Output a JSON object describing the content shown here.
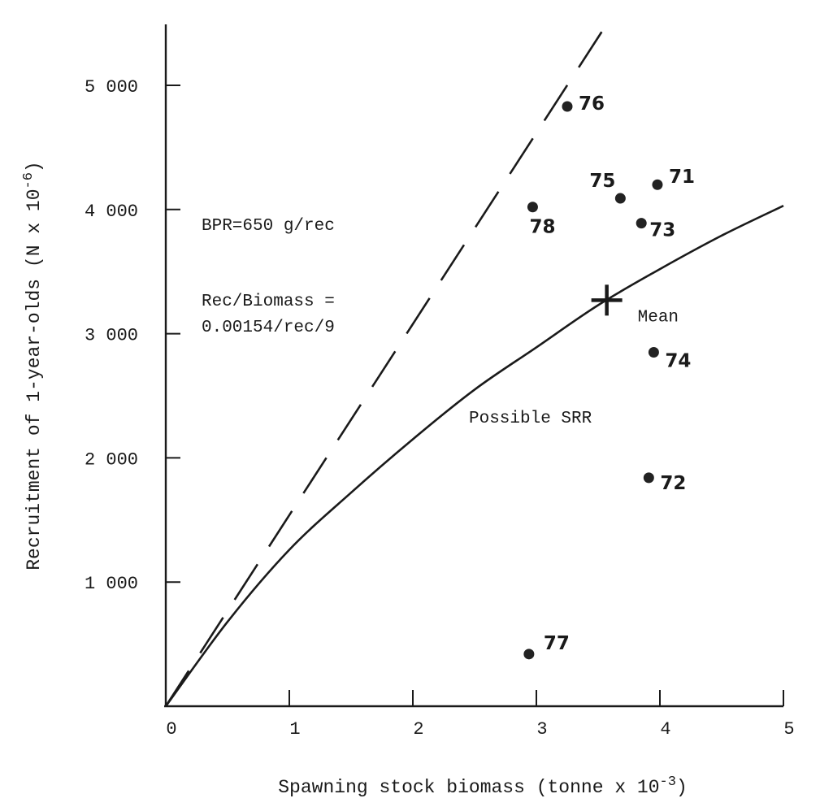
{
  "chart_data": {
    "type": "scatter",
    "xlabel": "Spawning stock biomass (tonne x 10",
    "xlabel_exponent": "-3",
    "xlabel_close": ")",
    "ylabel": "Recruitment of 1-year-olds (N x 10",
    "ylabel_exponent": "-6",
    "ylabel_close": ")",
    "xlim": [
      0,
      5
    ],
    "ylim": [
      0,
      5500
    ],
    "x_ticks": [
      {
        "value": 0,
        "label": "0"
      },
      {
        "value": 1,
        "label": "1"
      },
      {
        "value": 2,
        "label": "2"
      },
      {
        "value": 3,
        "label": "3"
      },
      {
        "value": 4,
        "label": "4"
      },
      {
        "value": 5,
        "label": "5"
      }
    ],
    "y_ticks": [
      {
        "value": 1000,
        "label": "1 000"
      },
      {
        "value": 2000,
        "label": "2 000"
      },
      {
        "value": 3000,
        "label": "3 000"
      },
      {
        "value": 4000,
        "label": "4 000"
      },
      {
        "value": 5000,
        "label": "5 000"
      }
    ],
    "grid": false,
    "points": [
      {
        "label": "71",
        "x": 3.98,
        "y": 4200
      },
      {
        "label": "72",
        "x": 3.91,
        "y": 1840
      },
      {
        "label": "73",
        "x": 3.85,
        "y": 3890
      },
      {
        "label": "74",
        "x": 3.95,
        "y": 2850
      },
      {
        "label": "75",
        "x": 3.68,
        "y": 4090
      },
      {
        "label": "76",
        "x": 3.25,
        "y": 4830
      },
      {
        "label": "77",
        "x": 2.94,
        "y": 420
      },
      {
        "label": "78",
        "x": 2.97,
        "y": 4020
      }
    ],
    "mean": {
      "label": "Mean",
      "x": 3.57,
      "y": 3270
    },
    "series": [
      {
        "name": "Possible SRR",
        "style": "solid",
        "x": [
          0,
          0.5,
          1,
          1.5,
          2,
          2.5,
          3,
          3.5,
          4,
          4.5,
          5
        ],
        "y": [
          0,
          680,
          1260,
          1720,
          2150,
          2550,
          2890,
          3230,
          3520,
          3790,
          4030
        ]
      },
      {
        "name": "",
        "style": "dashed",
        "x": [
          0,
          3.6
        ],
        "y": [
          0,
          5540
        ]
      }
    ],
    "annotations": {
      "bpr": "BPR=650 g/rec",
      "rec_biomass_line1": "Rec/Biomass =",
      "rec_biomass_line2": "0.00154/rec/9"
    }
  },
  "colors": {
    "ink": "#1a1a1a",
    "background": "#ffffff"
  }
}
